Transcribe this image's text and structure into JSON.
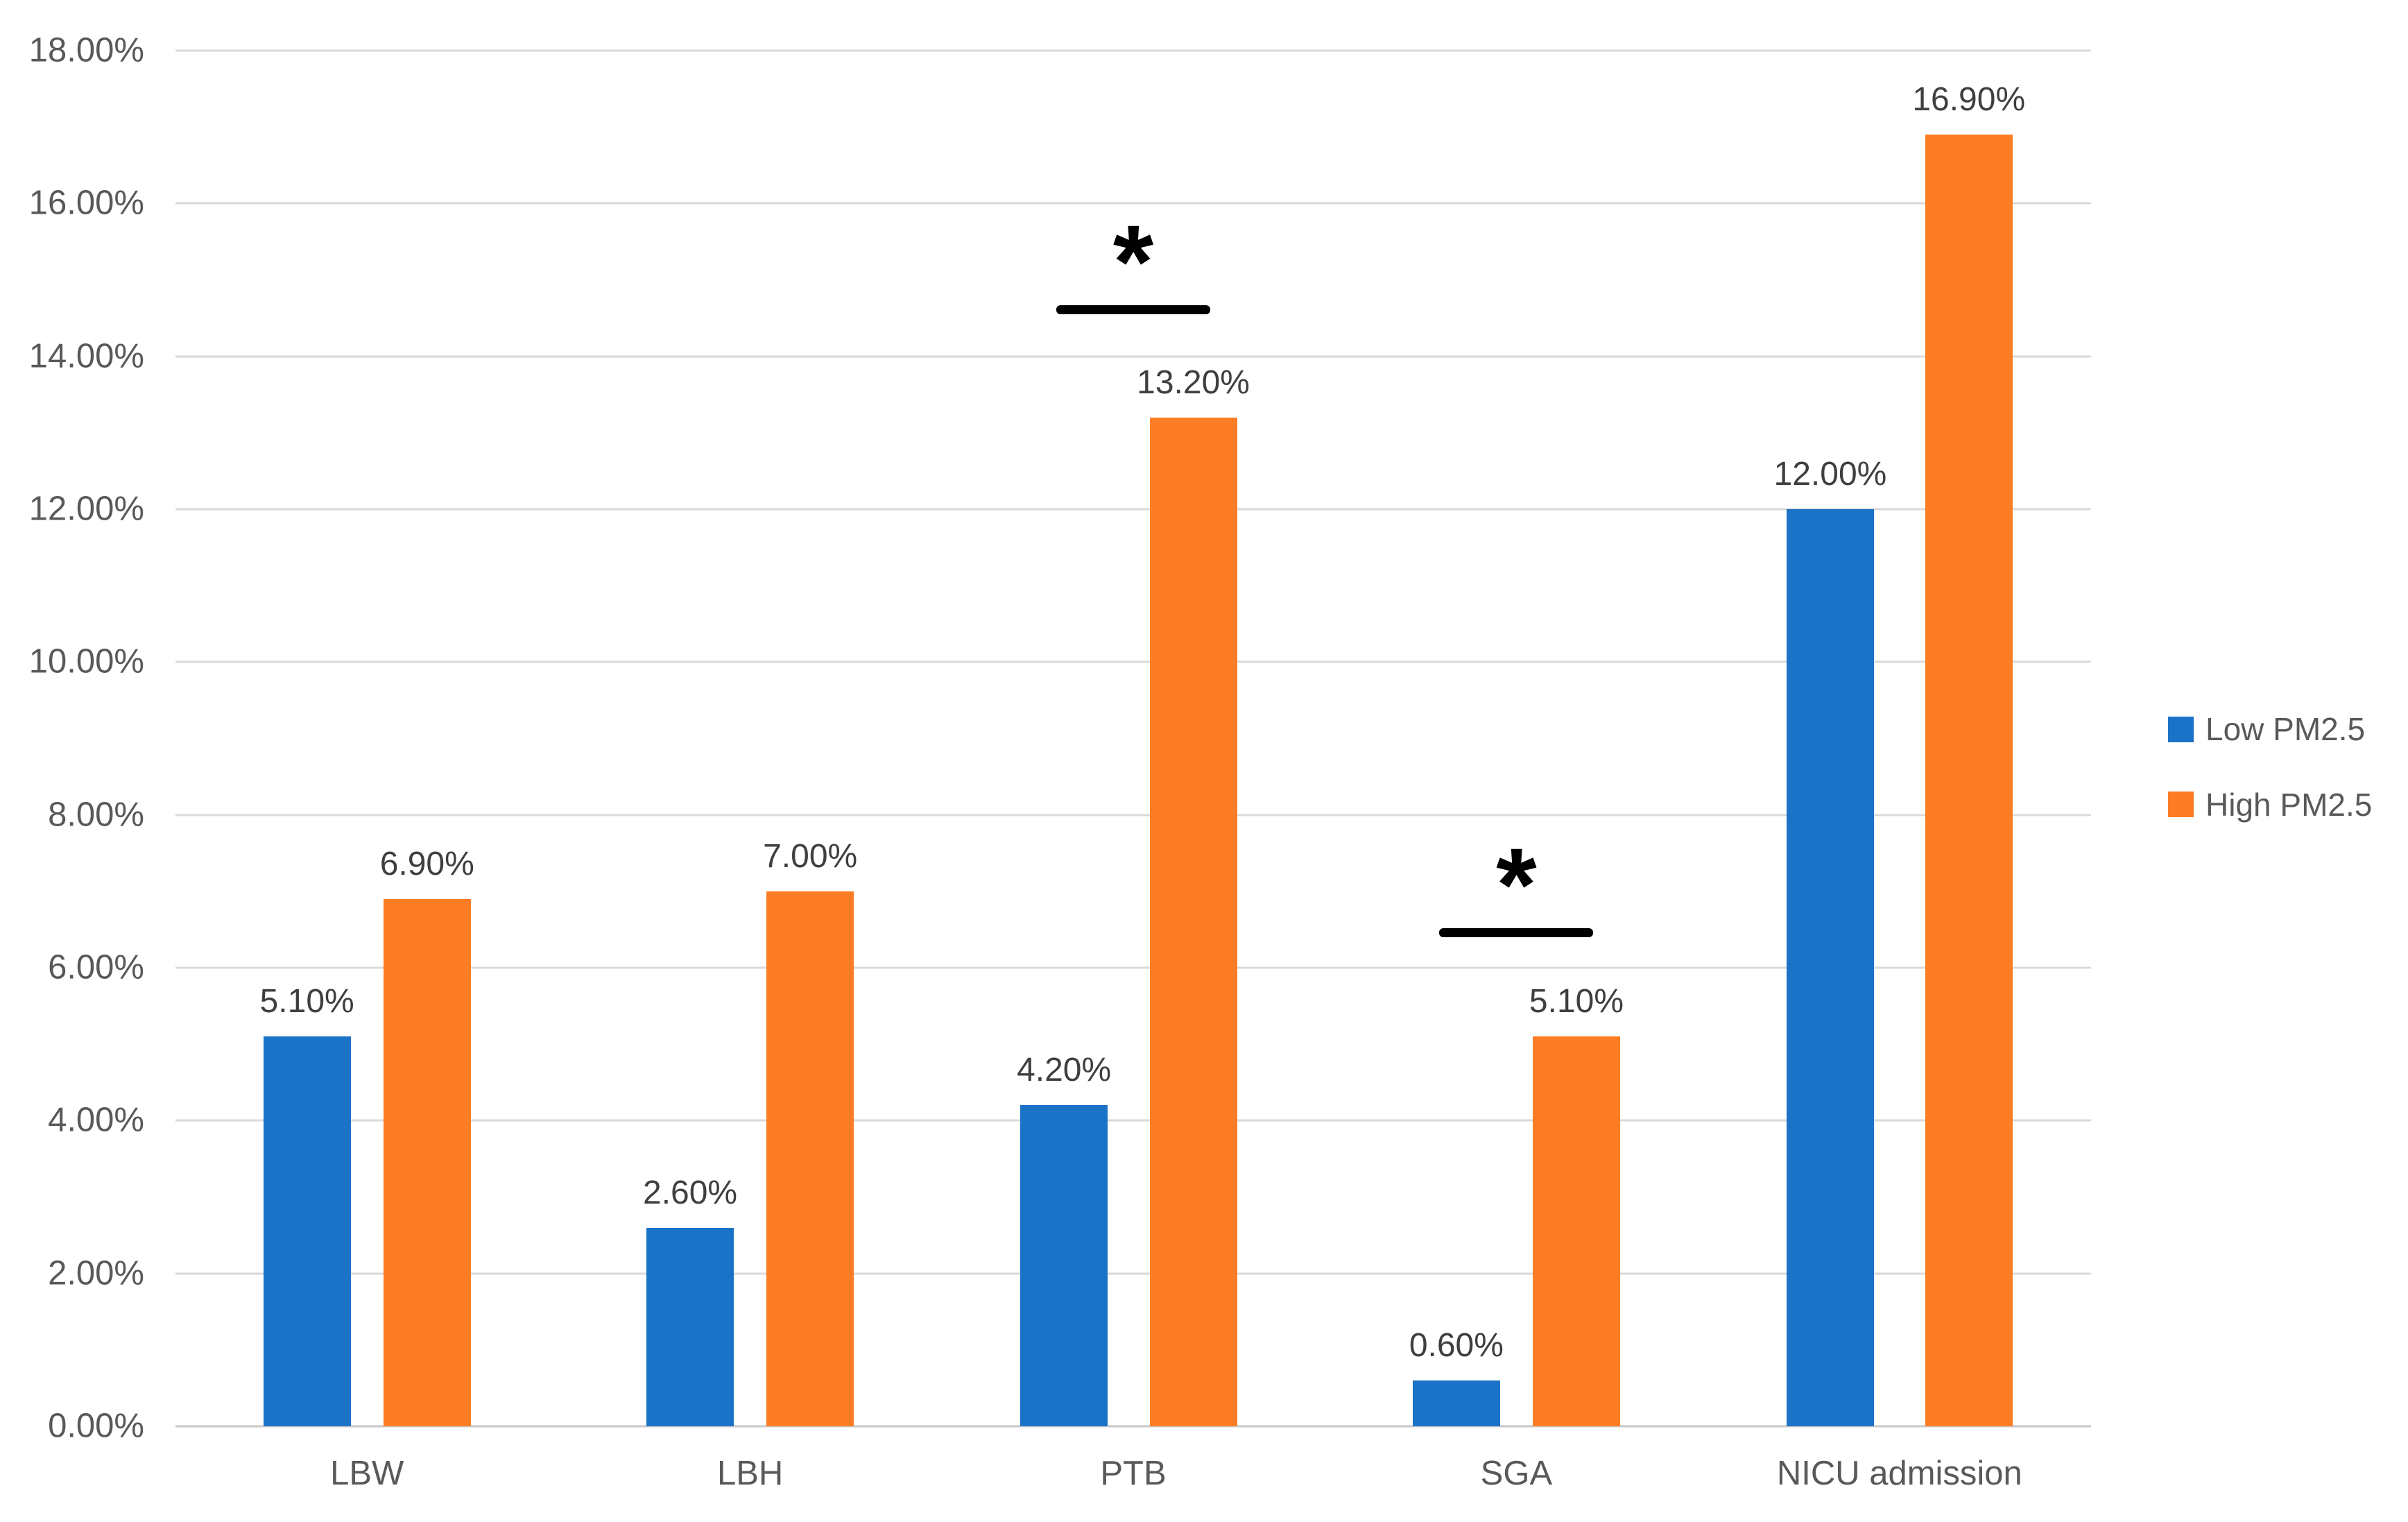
{
  "chart_data": {
    "type": "bar",
    "title": "",
    "xlabel": "",
    "ylabel": "",
    "categories": [
      "LBW",
      "LBH",
      "PTB",
      "SGA",
      "NICU admission"
    ],
    "series": [
      {
        "name": "Low PM2.5",
        "color": "#1b73c8",
        "values": [
          5.1,
          2.6,
          4.2,
          0.6,
          12.0
        ],
        "data_labels": [
          "5.10%",
          "2.60%",
          "4.20%",
          "0.60%",
          "12.00%"
        ]
      },
      {
        "name": "High PM2.5",
        "color": "#fc7d23",
        "values": [
          6.9,
          7.0,
          13.2,
          5.1,
          16.9
        ],
        "data_labels": [
          "6.90%",
          "7.00%",
          "13.20%",
          "5.10%",
          "16.90%"
        ]
      }
    ],
    "ylim": [
      0,
      18
    ],
    "y_tick_step": 2,
    "y_tick_labels": [
      "0.00%",
      "2.00%",
      "4.00%",
      "6.00%",
      "8.00%",
      "10.00%",
      "12.00%",
      "14.00%",
      "16.00%",
      "18.00%"
    ],
    "grid": true,
    "legend_position": "right-middle",
    "significance_annotations": [
      {
        "category": "PTB",
        "symbol": "*",
        "line_y_value": 14.55
      },
      {
        "category": "SGA",
        "symbol": "*",
        "line_y_value": 6.4
      }
    ],
    "colors": {
      "gridline": "#d9d9d9",
      "axis_text": "#595959",
      "data_label_text": "#3f3f3f",
      "annotation": "#000000",
      "background": "#ffffff"
    }
  }
}
